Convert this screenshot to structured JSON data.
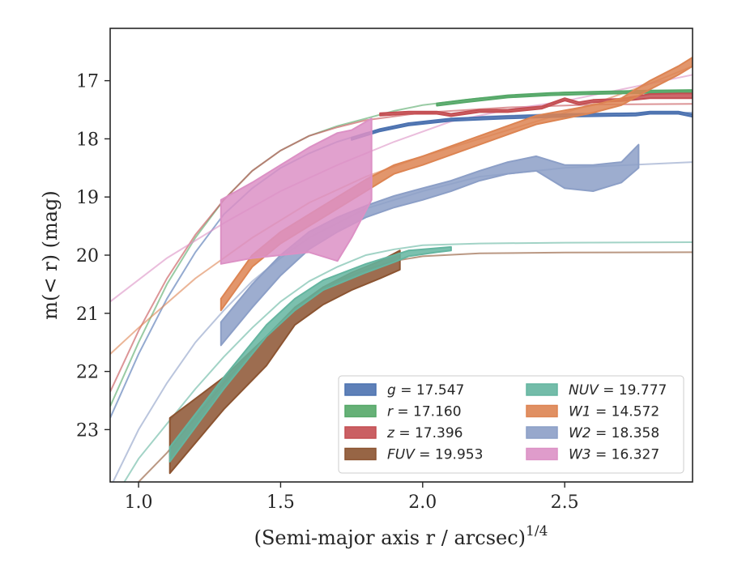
{
  "chart_data": {
    "type": "line",
    "xlabel": "(Semi-major axis r / arcsec)",
    "xlabel_exponent": "1/4",
    "ylabel": "m(< r) (mag)",
    "xlim": [
      0.9,
      2.95
    ],
    "ylim": [
      23.9,
      16.1
    ],
    "y_inverted": true,
    "x_ticks": [
      1.0,
      1.5,
      2.0,
      2.5
    ],
    "x_tick_labels": [
      "1.0",
      "1.5",
      "2.0",
      "2.5"
    ],
    "y_ticks": [
      17,
      18,
      19,
      20,
      21,
      22,
      23
    ],
    "y_tick_labels": [
      "17",
      "18",
      "19",
      "20",
      "21",
      "22",
      "23"
    ],
    "grid": false,
    "legend_position": "lower-right",
    "series": [
      {
        "name": "g = 17.547",
        "band": "g",
        "mag": "17.547",
        "color": "#4c72b0",
        "model": [
          [
            0.9,
            22.8
          ],
          [
            1.0,
            21.7
          ],
          [
            1.1,
            20.75
          ],
          [
            1.2,
            19.95
          ],
          [
            1.3,
            19.3
          ],
          [
            1.4,
            18.85
          ],
          [
            1.5,
            18.5
          ],
          [
            1.6,
            18.25
          ],
          [
            1.7,
            18.05
          ],
          [
            1.8,
            17.9
          ],
          [
            2.0,
            17.72
          ],
          [
            2.2,
            17.62
          ],
          [
            2.5,
            17.57
          ],
          [
            2.95,
            17.55
          ]
        ],
        "data_band": [
          [
            1.75,
            17.98,
            18.02
          ],
          [
            1.85,
            17.83,
            17.87
          ],
          [
            1.95,
            17.73,
            17.77
          ],
          [
            2.1,
            17.65,
            17.69
          ],
          [
            2.3,
            17.61,
            17.65
          ],
          [
            2.5,
            17.58,
            17.62
          ],
          [
            2.75,
            17.56,
            17.6
          ],
          [
            2.8,
            17.53,
            17.57
          ],
          [
            2.9,
            17.53,
            17.57
          ],
          [
            2.95,
            17.58,
            17.62
          ]
        ]
      },
      {
        "name": "r = 17.160",
        "band": "r",
        "mag": "17.160",
        "color": "#55a868",
        "model": [
          [
            0.9,
            22.6
          ],
          [
            1.0,
            21.5
          ],
          [
            1.1,
            20.5
          ],
          [
            1.2,
            19.7
          ],
          [
            1.3,
            19.05
          ],
          [
            1.4,
            18.55
          ],
          [
            1.5,
            18.2
          ],
          [
            1.6,
            17.95
          ],
          [
            1.7,
            17.78
          ],
          [
            1.8,
            17.65
          ],
          [
            1.9,
            17.52
          ],
          [
            2.0,
            17.42
          ],
          [
            2.2,
            17.3
          ],
          [
            2.5,
            17.2
          ],
          [
            2.95,
            17.17
          ]
        ],
        "data_band": [
          [
            2.05,
            17.39,
            17.43
          ],
          [
            2.15,
            17.33,
            17.37
          ],
          [
            2.3,
            17.25,
            17.29
          ],
          [
            2.45,
            17.21,
            17.25
          ],
          [
            2.6,
            17.19,
            17.23
          ],
          [
            2.8,
            17.17,
            17.21
          ],
          [
            2.95,
            17.16,
            17.2
          ]
        ]
      },
      {
        "name": "z = 17.396",
        "band": "z",
        "mag": "17.396",
        "color": "#c44e52",
        "model": [
          [
            0.9,
            22.35
          ],
          [
            1.0,
            21.3
          ],
          [
            1.1,
            20.4
          ],
          [
            1.2,
            19.65
          ],
          [
            1.3,
            19.05
          ],
          [
            1.4,
            18.55
          ],
          [
            1.5,
            18.2
          ],
          [
            1.6,
            17.95
          ],
          [
            1.7,
            17.8
          ],
          [
            1.8,
            17.68
          ],
          [
            2.0,
            17.55
          ],
          [
            2.3,
            17.46
          ],
          [
            2.6,
            17.41
          ],
          [
            2.95,
            17.4
          ]
        ],
        "data_band": [
          [
            1.85,
            17.56,
            17.6
          ],
          [
            1.95,
            17.53,
            17.57
          ],
          [
            2.05,
            17.53,
            17.57
          ],
          [
            2.1,
            17.57,
            17.61
          ],
          [
            2.2,
            17.5,
            17.54
          ],
          [
            2.3,
            17.5,
            17.54
          ],
          [
            2.42,
            17.44,
            17.48
          ],
          [
            2.5,
            17.3,
            17.34
          ],
          [
            2.55,
            17.37,
            17.41
          ],
          [
            2.6,
            17.33,
            17.37
          ],
          [
            2.7,
            17.31,
            17.35
          ],
          [
            2.8,
            17.23,
            17.3
          ],
          [
            2.9,
            17.22,
            17.3
          ],
          [
            2.95,
            17.22,
            17.3
          ]
        ]
      },
      {
        "name": "FUV = 19.953",
        "band": "FUV",
        "mag": "19.953",
        "color": "#8c5431",
        "model": [
          [
            1.0,
            23.9
          ],
          [
            1.1,
            23.4
          ],
          [
            1.2,
            22.8
          ],
          [
            1.3,
            22.2
          ],
          [
            1.4,
            21.65
          ],
          [
            1.5,
            21.15
          ],
          [
            1.6,
            20.75
          ],
          [
            1.7,
            20.45
          ],
          [
            1.8,
            20.25
          ],
          [
            1.9,
            20.1
          ],
          [
            2.0,
            20.02
          ],
          [
            2.2,
            19.97
          ],
          [
            2.5,
            19.955
          ],
          [
            2.95,
            19.95
          ]
        ],
        "data_band": [
          [
            1.11,
            22.8,
            23.75
          ],
          [
            1.3,
            22.1,
            22.65
          ],
          [
            1.45,
            21.4,
            21.9
          ],
          [
            1.55,
            20.9,
            21.2
          ],
          [
            1.65,
            20.55,
            20.85
          ],
          [
            1.75,
            20.3,
            20.6
          ],
          [
            1.85,
            20.1,
            20.4
          ],
          [
            1.92,
            19.92,
            20.25
          ]
        ]
      },
      {
        "name": "NUV = 19.777",
        "band": "NUV",
        "mag": "19.777",
        "color": "#64b5a0",
        "model": [
          [
            0.95,
            23.9
          ],
          [
            1.0,
            23.5
          ],
          [
            1.1,
            22.9
          ],
          [
            1.2,
            22.3
          ],
          [
            1.3,
            21.75
          ],
          [
            1.4,
            21.25
          ],
          [
            1.5,
            20.8
          ],
          [
            1.6,
            20.45
          ],
          [
            1.7,
            20.2
          ],
          [
            1.8,
            20.0
          ],
          [
            1.9,
            19.9
          ],
          [
            2.0,
            19.83
          ],
          [
            2.2,
            19.8
          ],
          [
            2.5,
            19.785
          ],
          [
            2.95,
            19.777
          ]
        ],
        "data_band": [
          [
            1.11,
            23.3,
            23.55
          ],
          [
            1.3,
            22.1,
            22.3
          ],
          [
            1.45,
            21.2,
            21.4
          ],
          [
            1.55,
            20.75,
            20.95
          ],
          [
            1.65,
            20.43,
            20.6
          ],
          [
            1.8,
            20.15,
            20.3
          ],
          [
            1.9,
            20.0,
            20.12
          ],
          [
            1.95,
            19.92,
            20.02
          ],
          [
            2.05,
            19.88,
            19.95
          ],
          [
            2.1,
            19.86,
            19.92
          ]
        ]
      },
      {
        "name": "W1 = 14.572",
        "band": "W1",
        "mag": "14.572",
        "color": "#dd8452",
        "model": [
          [
            0.9,
            21.7
          ],
          [
            1.0,
            21.25
          ],
          [
            1.2,
            20.4
          ],
          [
            1.4,
            19.7
          ],
          [
            1.6,
            19.1
          ],
          [
            1.8,
            18.65
          ],
          [
            2.0,
            18.3
          ],
          [
            2.2,
            18.0
          ],
          [
            2.4,
            17.7
          ],
          [
            2.6,
            17.4
          ],
          [
            2.8,
            17.05
          ],
          [
            2.95,
            16.75
          ]
        ],
        "data_band": [
          [
            1.29,
            20.75,
            20.95
          ],
          [
            1.4,
            20.0,
            20.2
          ],
          [
            1.5,
            19.6,
            19.8
          ],
          [
            1.6,
            19.3,
            19.5
          ],
          [
            1.7,
            19.0,
            19.2
          ],
          [
            1.8,
            18.7,
            18.9
          ],
          [
            1.9,
            18.45,
            18.6
          ],
          [
            2.0,
            18.3,
            18.45
          ],
          [
            2.2,
            17.95,
            18.1
          ],
          [
            2.4,
            17.6,
            17.75
          ],
          [
            2.6,
            17.42,
            17.55
          ],
          [
            2.7,
            17.3,
            17.42
          ],
          [
            2.8,
            17.0,
            17.15
          ],
          [
            2.9,
            16.75,
            16.9
          ],
          [
            2.95,
            16.6,
            16.75
          ]
        ]
      },
      {
        "name": "W2 = 18.358",
        "band": "W2",
        "mag": "18.358",
        "color": "#8c9fc7",
        "model": [
          [
            0.9,
            24.0
          ],
          [
            1.0,
            23.0
          ],
          [
            1.1,
            22.2
          ],
          [
            1.2,
            21.5
          ],
          [
            1.3,
            20.95
          ],
          [
            1.4,
            20.45
          ],
          [
            1.5,
            20.05
          ],
          [
            1.6,
            19.7
          ],
          [
            1.8,
            19.2
          ],
          [
            2.0,
            18.9
          ],
          [
            2.2,
            18.65
          ],
          [
            2.5,
            18.5
          ],
          [
            2.95,
            18.4
          ]
        ],
        "data_band": [
          [
            1.29,
            21.15,
            21.55
          ],
          [
            1.4,
            20.5,
            20.9
          ],
          [
            1.5,
            20.0,
            20.35
          ],
          [
            1.6,
            19.6,
            19.9
          ],
          [
            1.7,
            19.35,
            19.6
          ],
          [
            1.8,
            19.15,
            19.35
          ],
          [
            1.9,
            18.98,
            19.18
          ],
          [
            2.0,
            18.85,
            19.05
          ],
          [
            2.1,
            18.72,
            18.9
          ],
          [
            2.2,
            18.55,
            18.72
          ],
          [
            2.3,
            18.4,
            18.6
          ],
          [
            2.4,
            18.3,
            18.55
          ],
          [
            2.5,
            18.45,
            18.85
          ],
          [
            2.6,
            18.45,
            18.9
          ],
          [
            2.7,
            18.4,
            18.75
          ],
          [
            2.76,
            18.1,
            18.5
          ]
        ]
      },
      {
        "name": "W3 = 16.327",
        "band": "W3",
        "mag": "16.327",
        "color": "#dc91c5",
        "model": [
          [
            0.9,
            20.8
          ],
          [
            1.1,
            20.05
          ],
          [
            1.3,
            19.45
          ],
          [
            1.5,
            18.9
          ],
          [
            1.7,
            18.45
          ],
          [
            1.9,
            18.05
          ],
          [
            2.1,
            17.7
          ],
          [
            2.3,
            17.5
          ],
          [
            2.5,
            17.35
          ],
          [
            2.7,
            17.15
          ],
          [
            2.95,
            16.9
          ]
        ],
        "data_band": [
          [
            1.29,
            19.05,
            20.15
          ],
          [
            1.4,
            18.75,
            20.05
          ],
          [
            1.5,
            18.45,
            20.0
          ],
          [
            1.6,
            18.15,
            19.95
          ],
          [
            1.7,
            17.9,
            20.1
          ],
          [
            1.75,
            17.85,
            19.7
          ],
          [
            1.82,
            17.65,
            19.05
          ]
        ]
      }
    ]
  }
}
